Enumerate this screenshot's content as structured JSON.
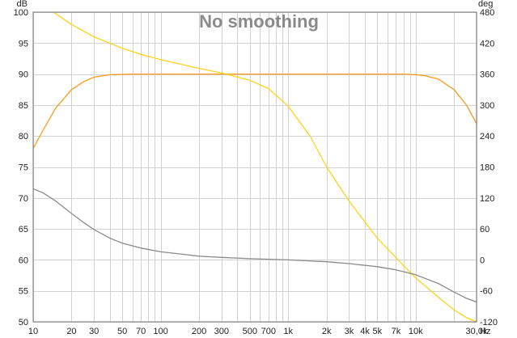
{
  "chart_data": {
    "type": "line",
    "title": "No smoothing",
    "x_scale": "log",
    "xlim": [
      10,
      30000
    ],
    "ylim_left": [
      50,
      100
    ],
    "ylim_right": [
      -120,
      480
    ],
    "left_unit": "dB",
    "right_unit": "deg",
    "x_unit": "Hz",
    "grid": true,
    "x_ticks": [
      {
        "value": 10,
        "label": "10"
      },
      {
        "value": 20,
        "label": "20"
      },
      {
        "value": 30,
        "label": "30"
      },
      {
        "value": 50,
        "label": "50"
      },
      {
        "value": 70,
        "label": "70"
      },
      {
        "value": 100,
        "label": "100"
      },
      {
        "value": 200,
        "label": "200"
      },
      {
        "value": 300,
        "label": "300"
      },
      {
        "value": 500,
        "label": "500"
      },
      {
        "value": 700,
        "label": "700"
      },
      {
        "value": 1000,
        "label": "1k"
      },
      {
        "value": 2000,
        "label": "2k"
      },
      {
        "value": 3000,
        "label": "3k"
      },
      {
        "value": 4000,
        "label": "4k"
      },
      {
        "value": 5000,
        "label": "5k"
      },
      {
        "value": 7000,
        "label": "7k"
      },
      {
        "value": 10000,
        "label": "10k"
      },
      {
        "value": 30000,
        "label": "30,0k"
      }
    ],
    "x_grid_minor": [
      10,
      20,
      30,
      40,
      50,
      60,
      70,
      80,
      90,
      100,
      200,
      300,
      400,
      500,
      600,
      700,
      800,
      900,
      1000,
      2000,
      3000,
      4000,
      5000,
      6000,
      7000,
      8000,
      9000,
      10000,
      20000,
      30000
    ],
    "y_left_ticks": [
      50,
      55,
      60,
      65,
      70,
      75,
      80,
      85,
      90,
      95,
      100
    ],
    "y_right_ticks": [
      -120,
      -60,
      0,
      60,
      120,
      180,
      240,
      300,
      360,
      420,
      480
    ],
    "series": [
      {
        "axis": "left",
        "color": "#ff9a1a",
        "points": [
          [
            10,
            78
          ],
          [
            12,
            81
          ],
          [
            15,
            84.5
          ],
          [
            20,
            87.5
          ],
          [
            25,
            88.8
          ],
          [
            30,
            89.5
          ],
          [
            40,
            89.9
          ],
          [
            60,
            90
          ],
          [
            100,
            90
          ],
          [
            1000,
            90
          ],
          [
            5000,
            90
          ],
          [
            8000,
            90
          ],
          [
            10000,
            89.9
          ],
          [
            12000,
            89.7
          ],
          [
            15000,
            89.2
          ],
          [
            20000,
            87.5
          ],
          [
            25000,
            85
          ],
          [
            30000,
            82
          ]
        ]
      },
      {
        "axis": "right",
        "color": "#ffd21a",
        "points": [
          [
            10,
            492
          ],
          [
            14,
            482
          ],
          [
            20,
            456
          ],
          [
            30,
            432
          ],
          [
            50,
            410
          ],
          [
            70,
            398
          ],
          [
            100,
            388
          ],
          [
            150,
            378
          ],
          [
            200,
            371
          ],
          [
            300,
            362
          ],
          [
            500,
            348
          ],
          [
            700,
            332
          ],
          [
            1000,
            298
          ],
          [
            1500,
            238
          ],
          [
            2000,
            180
          ],
          [
            3000,
            114
          ],
          [
            5000,
            42
          ],
          [
            7000,
            4
          ],
          [
            10000,
            -35
          ],
          [
            15000,
            -72
          ],
          [
            20000,
            -97
          ],
          [
            25000,
            -112
          ],
          [
            30000,
            -120
          ]
        ]
      },
      {
        "axis": "left",
        "color": "#8a8a8a",
        "points": [
          [
            10,
            71.5
          ],
          [
            12,
            70.8
          ],
          [
            15,
            69.5
          ],
          [
            20,
            67.5
          ],
          [
            25,
            66
          ],
          [
            30,
            64.9
          ],
          [
            40,
            63.5
          ],
          [
            50,
            62.7
          ],
          [
            70,
            61.9
          ],
          [
            100,
            61.3
          ],
          [
            150,
            60.9
          ],
          [
            200,
            60.6
          ],
          [
            300,
            60.4
          ],
          [
            500,
            60.2
          ],
          [
            1000,
            60
          ],
          [
            2000,
            59.7
          ],
          [
            3000,
            59.4
          ],
          [
            5000,
            58.9
          ],
          [
            7000,
            58.4
          ],
          [
            10000,
            57.6
          ],
          [
            15000,
            56.2
          ],
          [
            20000,
            54.8
          ],
          [
            25000,
            53.8
          ],
          [
            30000,
            53.2
          ]
        ]
      }
    ]
  }
}
